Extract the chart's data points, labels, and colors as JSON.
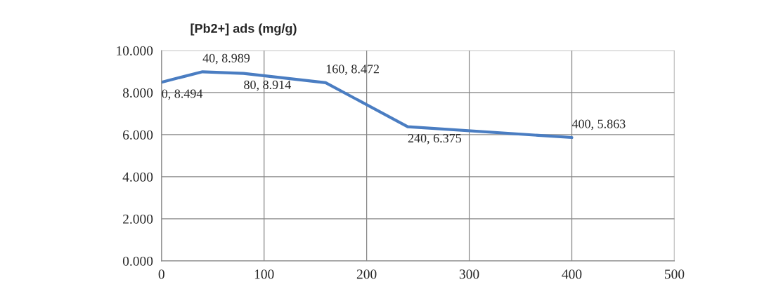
{
  "chart_data": {
    "type": "line",
    "title": "[Pb2+] ads (mg/g)",
    "x": [
      0,
      40,
      80,
      160,
      240,
      400
    ],
    "series": [
      {
        "color": "#4a7dc2",
        "values": [
          8.494,
          8.989,
          8.914,
          8.472,
          6.375,
          5.863
        ],
        "value_labels": [
          "0, 8.494",
          "40, 8.989",
          "80, 8.914",
          "160, 8.472",
          "240, 6.375",
          "400, 5.863"
        ]
      }
    ],
    "xlim": [
      0,
      500
    ],
    "xticks": [
      0,
      100,
      200,
      300,
      400,
      500
    ],
    "ylim": [
      0,
      10
    ],
    "yticks": [
      {
        "value": 0,
        "label": "0.000"
      },
      {
        "value": 2,
        "label": "2.000"
      },
      {
        "value": 4,
        "label": "4.000"
      },
      {
        "value": 6,
        "label": "6.000"
      },
      {
        "value": 8,
        "label": "8.000"
      },
      {
        "value": 10,
        "label": "10.000"
      }
    ],
    "grid": true,
    "marker": "none",
    "line_style": "solid",
    "legend": false
  }
}
